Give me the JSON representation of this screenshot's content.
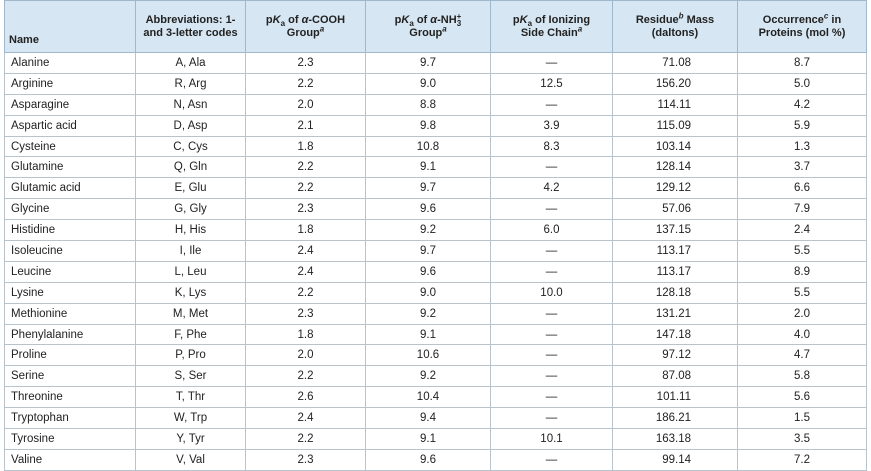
{
  "table": {
    "header": [
      [
        "Name"
      ],
      [
        "Abbreviations: 1- and 3-letter codes"
      ],
      [
        "p",
        "K",
        "a",
        " of ",
        "α",
        "-COOH",
        "Group",
        "a"
      ],
      [
        "p",
        "K",
        "a",
        " of ",
        "α",
        "-NH",
        "3",
        "+",
        "Group",
        "a"
      ],
      [
        "p",
        "K",
        "a",
        " of Ionizing",
        "Side Chain",
        "a"
      ],
      [
        "Residue",
        "b",
        " Mass",
        "(daltons)"
      ],
      [
        "Occurrence",
        "c",
        " in",
        "Proteins (mol %)"
      ]
    ],
    "rows": [
      [
        "Alanine",
        "A, Ala",
        "2.3",
        "9.7",
        "—",
        "71.08",
        "8.7"
      ],
      [
        "Arginine",
        "R, Arg",
        "2.2",
        "9.0",
        "12.5",
        "156.20",
        "5.0"
      ],
      [
        "Asparagine",
        "N, Asn",
        "2.0",
        "8.8",
        "—",
        "114.11",
        "4.2"
      ],
      [
        "Aspartic acid",
        "D, Asp",
        "2.1",
        "9.8",
        "3.9",
        "115.09",
        "5.9"
      ],
      [
        "Cysteine",
        "C, Cys",
        "1.8",
        "10.8",
        "8.3",
        "103.14",
        "1.3"
      ],
      [
        "Glutamine",
        "Q, Gln",
        "2.2",
        "9.1",
        "—",
        "128.14",
        "3.7"
      ],
      [
        "Glutamic acid",
        "E, Glu",
        "2.2",
        "9.7",
        "4.2",
        "129.12",
        "6.6"
      ],
      [
        "Glycine",
        "G, Gly",
        "2.3",
        "9.6",
        "—",
        "57.06",
        "7.9"
      ],
      [
        "Histidine",
        "H, His",
        "1.8",
        "9.2",
        "6.0",
        "137.15",
        "2.4"
      ],
      [
        "Isoleucine",
        "I, Ile",
        "2.4",
        "9.7",
        "—",
        "113.17",
        "5.5"
      ],
      [
        "Leucine",
        "L, Leu",
        "2.4",
        "9.6",
        "—",
        "113.17",
        "8.9"
      ],
      [
        "Lysine",
        "K, Lys",
        "2.2",
        "9.0",
        "10.0",
        "128.18",
        "5.5"
      ],
      [
        "Methionine",
        "M, Met",
        "2.3",
        "9.2",
        "—",
        "131.21",
        "2.0"
      ],
      [
        "Phenylalanine",
        "F, Phe",
        "1.8",
        "9.1",
        "—",
        "147.18",
        "4.0"
      ],
      [
        "Proline",
        "P, Pro",
        "2.0",
        "10.6",
        "—",
        "97.12",
        "4.7"
      ],
      [
        "Serine",
        "S, Ser",
        "2.2",
        "9.2",
        "—",
        "87.08",
        "5.8"
      ],
      [
        "Threonine",
        "T, Thr",
        "2.6",
        "10.4",
        "—",
        "101.11",
        "5.6"
      ],
      [
        "Tryptophan",
        "W, Trp",
        "2.4",
        "9.4",
        "—",
        "186.21",
        "1.5"
      ],
      [
        "Tyrosine",
        "Y, Tyr",
        "2.2",
        "9.1",
        "10.1",
        "163.18",
        "3.5"
      ],
      [
        "Valine",
        "V, Val",
        "2.3",
        "9.6",
        "—",
        "99.14",
        "7.2"
      ]
    ]
  }
}
